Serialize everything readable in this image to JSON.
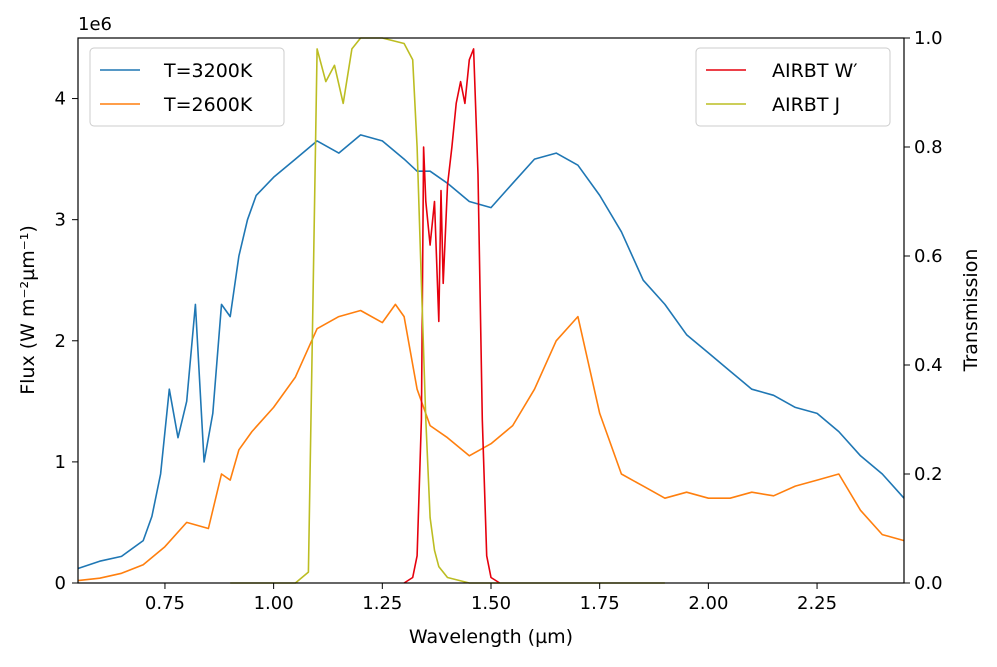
{
  "chart_data": {
    "type": "line",
    "xlabel": "Wavelength (µm)",
    "ylabel_left": "Flux (W m⁻²µm⁻¹)",
    "ylabel_right": "Transmission",
    "offset_text": "1e6",
    "xlim": [
      0.55,
      2.45
    ],
    "ylim_left": [
      0,
      4.5
    ],
    "ylim_right": [
      0,
      1.0
    ],
    "x_ticks": [
      "0.75",
      "1.00",
      "1.25",
      "1.50",
      "1.75",
      "2.00",
      "2.25"
    ],
    "x_tick_values": [
      0.75,
      1.0,
      1.25,
      1.5,
      1.75,
      2.0,
      2.25
    ],
    "y_left_ticks": [
      "0",
      "1",
      "2",
      "3",
      "4"
    ],
    "y_left_tick_values": [
      0,
      1,
      2,
      3,
      4
    ],
    "y_right_ticks": [
      "0.0",
      "0.2",
      "0.4",
      "0.6",
      "0.8",
      "1.0"
    ],
    "y_right_tick_values": [
      0.0,
      0.2,
      0.4,
      0.6,
      0.8,
      1.0
    ],
    "grid": false,
    "legend_left": {
      "placement": "upper-left",
      "entries": [
        "T=3200K",
        "T=2600K"
      ]
    },
    "legend_right": {
      "placement": "upper-right",
      "entries": [
        "AIRBT W′",
        "AIRBT J"
      ]
    },
    "series": [
      {
        "name": "T=3200K",
        "axis": "left",
        "color": "#1f77b4",
        "x": [
          0.55,
          0.6,
          0.65,
          0.7,
          0.72,
          0.74,
          0.76,
          0.78,
          0.8,
          0.82,
          0.84,
          0.86,
          0.88,
          0.9,
          0.92,
          0.94,
          0.96,
          1.0,
          1.05,
          1.1,
          1.15,
          1.2,
          1.25,
          1.3,
          1.33,
          1.36,
          1.4,
          1.45,
          1.5,
          1.55,
          1.6,
          1.65,
          1.7,
          1.75,
          1.8,
          1.85,
          1.9,
          1.95,
          2.0,
          2.05,
          2.1,
          2.15,
          2.2,
          2.25,
          2.3,
          2.35,
          2.4,
          2.45
        ],
        "y": [
          0.12,
          0.18,
          0.22,
          0.35,
          0.55,
          0.9,
          1.6,
          1.2,
          1.5,
          2.3,
          1.0,
          1.4,
          2.3,
          2.2,
          2.7,
          3.0,
          3.2,
          3.35,
          3.5,
          3.65,
          3.55,
          3.7,
          3.65,
          3.5,
          3.4,
          3.4,
          3.3,
          3.15,
          3.1,
          3.3,
          3.5,
          3.55,
          3.45,
          3.2,
          2.9,
          2.5,
          2.3,
          2.05,
          1.9,
          1.75,
          1.6,
          1.55,
          1.45,
          1.4,
          1.25,
          1.05,
          0.9,
          0.7
        ]
      },
      {
        "name": "T=2600K",
        "axis": "left",
        "color": "#ff7f0e",
        "x": [
          0.55,
          0.6,
          0.65,
          0.7,
          0.75,
          0.8,
          0.85,
          0.88,
          0.9,
          0.92,
          0.95,
          1.0,
          1.05,
          1.1,
          1.15,
          1.2,
          1.25,
          1.28,
          1.3,
          1.33,
          1.36,
          1.4,
          1.45,
          1.5,
          1.55,
          1.6,
          1.65,
          1.7,
          1.75,
          1.8,
          1.85,
          1.9,
          1.95,
          2.0,
          2.05,
          2.1,
          2.15,
          2.2,
          2.25,
          2.3,
          2.35,
          2.4,
          2.45
        ],
        "y": [
          0.02,
          0.04,
          0.08,
          0.15,
          0.3,
          0.5,
          0.45,
          0.9,
          0.85,
          1.1,
          1.25,
          1.45,
          1.7,
          2.1,
          2.2,
          2.25,
          2.15,
          2.3,
          2.2,
          1.6,
          1.3,
          1.2,
          1.05,
          1.15,
          1.3,
          1.6,
          2.0,
          2.2,
          1.4,
          0.9,
          0.8,
          0.7,
          0.75,
          0.7,
          0.7,
          0.75,
          0.72,
          0.8,
          0.85,
          0.9,
          0.6,
          0.4,
          0.35
        ]
      },
      {
        "name": "AIRBT W′",
        "axis": "right",
        "color": "#e6000d",
        "x": [
          1.3,
          1.32,
          1.33,
          1.34,
          1.345,
          1.35,
          1.36,
          1.37,
          1.38,
          1.385,
          1.39,
          1.4,
          1.41,
          1.42,
          1.43,
          1.44,
          1.45,
          1.46,
          1.47,
          1.48,
          1.49,
          1.5,
          1.52
        ],
        "y": [
          0.0,
          0.01,
          0.05,
          0.3,
          0.8,
          0.7,
          0.62,
          0.7,
          0.48,
          0.72,
          0.55,
          0.73,
          0.8,
          0.88,
          0.92,
          0.88,
          0.96,
          0.98,
          0.75,
          0.3,
          0.05,
          0.01,
          0.0
        ]
      },
      {
        "name": "AIRBT J",
        "axis": "right",
        "color": "#bcbd22",
        "x": [
          0.9,
          1.05,
          1.08,
          1.09,
          1.1,
          1.12,
          1.14,
          1.16,
          1.18,
          1.2,
          1.25,
          1.3,
          1.32,
          1.33,
          1.34,
          1.35,
          1.36,
          1.37,
          1.38,
          1.4,
          1.45,
          1.55,
          1.9
        ],
        "y": [
          0.0,
          0.0,
          0.02,
          0.5,
          0.98,
          0.92,
          0.95,
          0.88,
          0.98,
          1.0,
          1.0,
          0.99,
          0.96,
          0.8,
          0.55,
          0.3,
          0.12,
          0.06,
          0.03,
          0.01,
          0.0,
          0.0,
          0.0
        ]
      }
    ]
  }
}
